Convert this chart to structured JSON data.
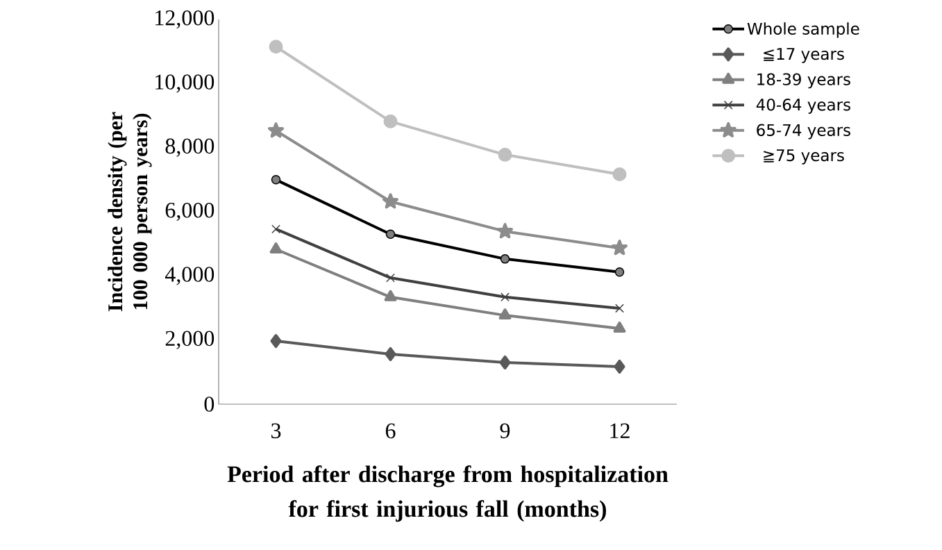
{
  "chart_data": {
    "type": "line",
    "xlabel": "Period after discharge from hospitalization for first injurious fall (months)",
    "ylabel": "Incidence density (per 100 000 person years)",
    "categories": [
      "3",
      "6",
      "9",
      "12"
    ],
    "ylim": [
      0,
      12000
    ],
    "yticks": [
      0,
      {
        "value": 2000,
        "label": "2,000"
      },
      {
        "value": 4000,
        "label": "4,000"
      },
      {
        "value": 6000,
        "label": "6,000"
      },
      {
        "value": 8000,
        "label": "8,000"
      },
      {
        "value": 10000,
        "label": "10,000"
      },
      {
        "value": 12000,
        "label": "12,000"
      }
    ],
    "grid": false,
    "legend": "right",
    "line_style": "solid",
    "series": [
      {
        "name": "Whole sample",
        "color": "#000000",
        "marker": "circle",
        "values": [
          7000,
          5300,
          4530,
          4120
        ]
      },
      {
        "name": "≦17 years",
        "color": "#595959",
        "marker": "diamond",
        "values": [
          1970,
          1560,
          1300,
          1170
        ]
      },
      {
        "name": "18-39 years",
        "color": "#7f7f7f",
        "marker": "triangle",
        "values": [
          4830,
          3340,
          2770,
          2360
        ]
      },
      {
        "name": "40-64 years",
        "color": "#404040",
        "marker": "cross",
        "values": [
          5460,
          3940,
          3340,
          2990
        ]
      },
      {
        "name": "65-74 years",
        "color": "#8c8c8c",
        "marker": "star",
        "values": [
          8530,
          6320,
          5390,
          4870
        ]
      },
      {
        "name": "≧75 years",
        "color": "#bfbfbf",
        "marker": "circle",
        "values": [
          11150,
          8820,
          7780,
          7170
        ]
      }
    ]
  }
}
